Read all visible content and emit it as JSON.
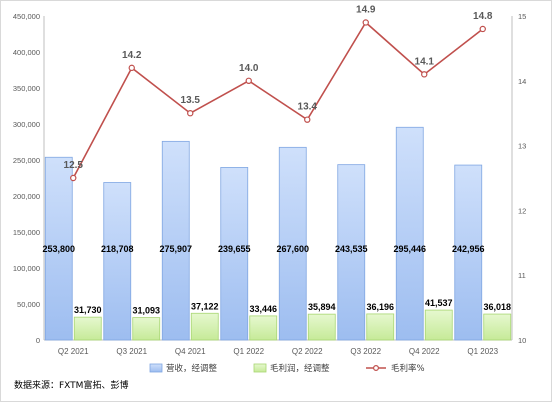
{
  "chart_data": {
    "type": "bar",
    "categories": [
      "Q2 2021",
      "Q3 2021",
      "Q4 2021",
      "Q1 2022",
      "Q2 2022",
      "Q3 2022",
      "Q4 2022",
      "Q1 2023"
    ],
    "series": [
      {
        "name": "营收，经调整",
        "kind": "bar",
        "axis": "left",
        "color": "#b4cdf5",
        "values": [
          253800,
          218708,
          275907,
          239655,
          267600,
          243535,
          295446,
          242956
        ],
        "labels": [
          "253,800",
          "218,708",
          "275,907",
          "239,655",
          "267,600",
          "243,535",
          "295,446",
          "242,956"
        ]
      },
      {
        "name": "毛利润，经调整",
        "kind": "bar",
        "axis": "left",
        "color": "#d7f2b4",
        "values": [
          31730,
          31093,
          37122,
          33446,
          35894,
          36196,
          41537,
          36018
        ],
        "labels": [
          "31,730",
          "31,093",
          "37,122",
          "33,446",
          "35,894",
          "36,196",
          "41,537",
          "36,018"
        ]
      },
      {
        "name": "毛利率%",
        "kind": "line",
        "axis": "right",
        "color": "#c0504d",
        "values": [
          12.5,
          14.2,
          13.5,
          14.0,
          13.4,
          14.9,
          14.1,
          14.8
        ],
        "labels": [
          "12.5",
          "14.2",
          "13.5",
          "14.0",
          "13.4",
          "14.9",
          "14.1",
          "14.8"
        ]
      }
    ],
    "y_left": {
      "min": 0,
      "max": 450000,
      "ticks": [
        "0",
        "50,000",
        "100,000",
        "150,000",
        "200,000",
        "250,000",
        "300,000",
        "350,000",
        "400,000",
        "450,000"
      ]
    },
    "y_right": {
      "min": 10,
      "max": 15,
      "ticks": [
        "10",
        "11",
        "12",
        "13",
        "14",
        "15"
      ]
    },
    "grid": false,
    "legend_position": "bottom"
  },
  "source_note": "数据来源：FXTM富拓、彭博"
}
